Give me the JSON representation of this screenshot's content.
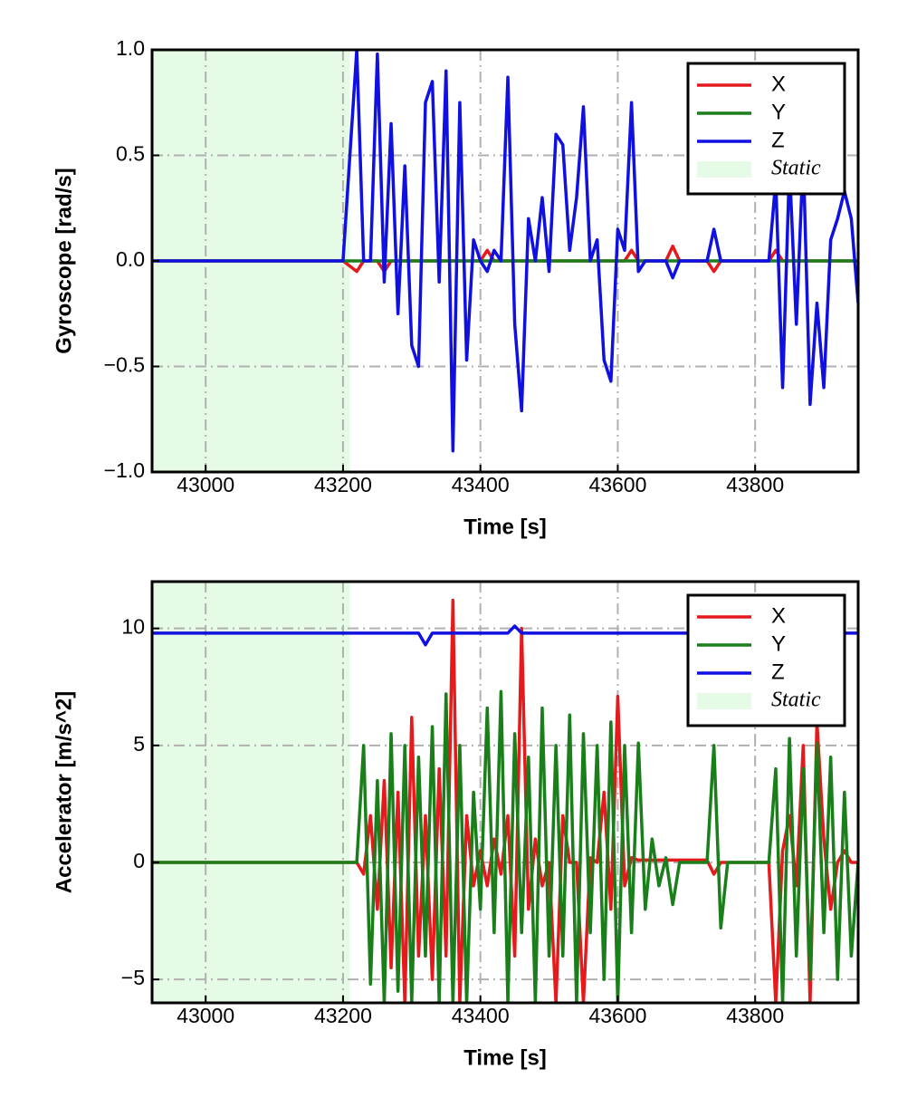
{
  "chart_data": [
    {
      "type": "line",
      "ylabel": "Gyroscope [rad/s]",
      "xlabel": "Time [s]",
      "xlim": [
        42922,
        43950
      ],
      "xticks": [
        43000,
        43200,
        43400,
        43600,
        43800
      ],
      "ylim": [
        -1,
        1
      ],
      "yticks": [
        {
          "value": -1,
          "label": "−1.0"
        },
        {
          "value": -0.5,
          "label": "−0.5"
        },
        {
          "value": 0,
          "label": "0.0"
        },
        {
          "value": 0.5,
          "label": "0.5"
        },
        {
          "value": 1,
          "label": "1.0"
        }
      ],
      "grid": true,
      "legend": "upper right",
      "static_span": [
        42922,
        43210
      ],
      "static_label": "Static",
      "static_color": "#e6fbe6",
      "x": [
        42922,
        43000,
        43100,
        43200,
        43220,
        43230,
        43240,
        43250,
        43260,
        43270,
        43280,
        43290,
        43300,
        43310,
        43320,
        43330,
        43340,
        43350,
        43360,
        43370,
        43380,
        43390,
        43400,
        43410,
        43420,
        43430,
        43440,
        43450,
        43460,
        43470,
        43480,
        43490,
        43500,
        43510,
        43520,
        43530,
        43540,
        43550,
        43560,
        43570,
        43580,
        43590,
        43600,
        43610,
        43620,
        43630,
        43640,
        43650,
        43660,
        43670,
        43680,
        43690,
        43700,
        43710,
        43720,
        43730,
        43740,
        43750,
        43760,
        43770,
        43780,
        43790,
        43800,
        43810,
        43820,
        43830,
        43840,
        43850,
        43860,
        43870,
        43880,
        43890,
        43900,
        43910,
        43920,
        43930,
        43940,
        43950
      ],
      "series": [
        {
          "name": "X",
          "color": "#e41a1c",
          "values": [
            0,
            0,
            0,
            0,
            -0.05,
            0,
            0,
            0,
            -0.05,
            0,
            0,
            0,
            0,
            0,
            0,
            0,
            0,
            0,
            0,
            0,
            0,
            0,
            0,
            0.05,
            0,
            0,
            0,
            0,
            0,
            0,
            0,
            0,
            0,
            0,
            0,
            0,
            0,
            0,
            0,
            0,
            0,
            0,
            0,
            0,
            0.05,
            0,
            0,
            0,
            0,
            0,
            0.07,
            0,
            0,
            0,
            0,
            0,
            -0.05,
            0,
            0,
            0,
            0,
            0,
            0,
            0,
            0,
            0.05,
            0,
            0,
            0,
            0,
            0,
            0,
            0,
            0,
            0,
            0,
            0,
            0
          ]
        },
        {
          "name": "Y",
          "color": "#1a7f1a",
          "values": [
            0,
            0,
            0,
            0,
            0,
            0,
            0,
            0,
            0,
            0,
            0,
            0,
            0,
            0,
            0,
            0,
            0,
            0,
            0,
            0,
            0,
            0,
            0,
            0,
            0,
            0,
            0,
            0,
            0,
            0,
            0,
            0,
            0,
            0,
            0,
            0,
            0,
            0,
            0,
            0,
            0,
            0,
            0,
            0,
            0,
            0,
            0,
            0,
            0,
            0,
            0,
            0,
            0,
            0,
            0,
            0,
            0,
            0,
            0,
            0,
            0,
            0,
            0,
            0,
            0,
            0,
            0,
            0,
            0,
            0,
            0,
            0,
            0,
            0,
            0,
            0,
            0,
            0
          ]
        },
        {
          "name": "Z",
          "color": "#1010e0",
          "values": [
            0,
            0,
            0,
            0,
            1.0,
            0,
            0,
            0.98,
            -0.1,
            0.65,
            -0.25,
            0.45,
            -0.4,
            -0.5,
            0.75,
            0.85,
            -0.1,
            0.9,
            -0.9,
            0.75,
            -0.47,
            0.1,
            0,
            -0.05,
            0.05,
            0,
            0.87,
            -0.3,
            -0.71,
            0.2,
            0,
            0.3,
            -0.05,
            0.6,
            0.55,
            0.05,
            0.3,
            0.73,
            0,
            0.1,
            -0.47,
            -0.57,
            0.15,
            0.05,
            0.75,
            -0.05,
            0,
            0,
            0,
            0,
            -0.08,
            0,
            0,
            0,
            0,
            0,
            0.15,
            0,
            0,
            0,
            0,
            0,
            0,
            0,
            0,
            0.38,
            -0.6,
            0.45,
            -0.3,
            0.5,
            -0.68,
            -0.2,
            -0.6,
            0.1,
            0.2,
            0.33,
            0.2,
            -0.2
          ]
        }
      ]
    },
    {
      "type": "line",
      "ylabel": "Accelerator [m/s^2]",
      "xlabel": "Time [s]",
      "xlim": [
        42922,
        43950
      ],
      "xticks": [
        43000,
        43200,
        43400,
        43600,
        43800
      ],
      "ylim": [
        -6,
        12
      ],
      "yticks": [
        {
          "value": -5,
          "label": "−5"
        },
        0,
        5,
        10
      ],
      "grid": true,
      "legend": "upper right",
      "static_span": [
        42922,
        43210
      ],
      "static_label": "Static",
      "static_color": "#e6fbe6",
      "x": [
        42922,
        43000,
        43100,
        43200,
        43220,
        43230,
        43240,
        43250,
        43260,
        43270,
        43280,
        43290,
        43300,
        43310,
        43320,
        43330,
        43340,
        43350,
        43360,
        43370,
        43380,
        43390,
        43400,
        43410,
        43420,
        43430,
        43440,
        43450,
        43460,
        43470,
        43480,
        43490,
        43500,
        43510,
        43520,
        43530,
        43540,
        43550,
        43560,
        43570,
        43580,
        43590,
        43600,
        43610,
        43620,
        43630,
        43640,
        43650,
        43660,
        43670,
        43680,
        43690,
        43700,
        43710,
        43720,
        43730,
        43740,
        43750,
        43760,
        43770,
        43780,
        43790,
        43800,
        43810,
        43820,
        43830,
        43840,
        43850,
        43860,
        43870,
        43880,
        43890,
        43900,
        43910,
        43920,
        43930,
        43940,
        43950
      ],
      "series": [
        {
          "name": "X",
          "color": "#e41a1c",
          "values": [
            0,
            0,
            0,
            0,
            0,
            -0.5,
            2,
            -2,
            3.5,
            -4.5,
            3,
            -6,
            6.2,
            -4,
            2,
            -5,
            4,
            -4,
            11.2,
            -6,
            2,
            -1,
            0.5,
            -1,
            1,
            -0.5,
            2,
            -4,
            10,
            -2,
            1,
            -1,
            0,
            -6,
            2,
            0,
            0,
            -6,
            0.2,
            0,
            3,
            -2,
            7.1,
            -1,
            0.2,
            0.1,
            0.1,
            0.1,
            0.1,
            0.1,
            0.1,
            0.1,
            0.1,
            0.1,
            0.1,
            0.1,
            -0.5,
            0,
            0,
            0,
            0,
            0,
            0,
            0,
            0,
            -6,
            0.5,
            2,
            -1,
            5,
            -6,
            6,
            1,
            -2,
            0,
            0.5,
            0,
            0
          ]
        },
        {
          "name": "Y",
          "color": "#1a7f1a",
          "values": [
            0,
            0,
            0,
            0,
            0,
            5.0,
            -5.2,
            3.5,
            -6,
            5.5,
            -5.5,
            5,
            -6,
            4.5,
            -4,
            5.8,
            -6,
            7.2,
            -6,
            5,
            -6,
            3,
            -2,
            6.6,
            -3,
            7.3,
            -6,
            5.5,
            -3,
            4.5,
            -6,
            6.6,
            -4,
            5,
            -4,
            6.3,
            -6,
            5.5,
            -3,
            5,
            -5,
            6.0,
            -6,
            5,
            -3,
            5.1,
            -2,
            1,
            -1,
            0.2,
            -1.8,
            0,
            0,
            0,
            0,
            0,
            5.0,
            -2.8,
            0,
            0,
            0,
            0,
            0,
            0,
            0,
            4.0,
            -6,
            5.3,
            -4,
            4.0,
            -5,
            5.1,
            -3,
            4.5,
            -5,
            3,
            -4,
            0
          ]
        },
        {
          "name": "Z",
          "color": "#1010e0",
          "values": [
            9.8,
            9.8,
            9.8,
            9.8,
            9.8,
            9.8,
            9.8,
            9.8,
            9.8,
            9.8,
            9.8,
            9.8,
            9.8,
            9.8,
            9.3,
            9.8,
            9.8,
            9.8,
            9.8,
            9.8,
            9.8,
            9.8,
            9.8,
            9.8,
            9.8,
            9.8,
            9.8,
            10.1,
            9.8,
            9.8,
            9.8,
            9.8,
            9.8,
            9.8,
            9.8,
            9.8,
            9.8,
            9.8,
            9.8,
            9.8,
            9.8,
            9.8,
            9.8,
            9.8,
            9.8,
            9.8,
            9.8,
            9.8,
            9.8,
            9.8,
            9.8,
            9.8,
            9.8,
            9.8,
            9.8,
            9.8,
            9.8,
            9.8,
            9.8,
            9.8,
            9.8,
            9.8,
            9.8,
            9.8,
            9.8,
            9.8,
            9.8,
            9.8,
            9.8,
            9.8,
            9.8,
            9.8,
            9.8,
            9.8,
            9.8,
            9.8,
            9.8,
            9.8
          ]
        }
      ]
    }
  ]
}
